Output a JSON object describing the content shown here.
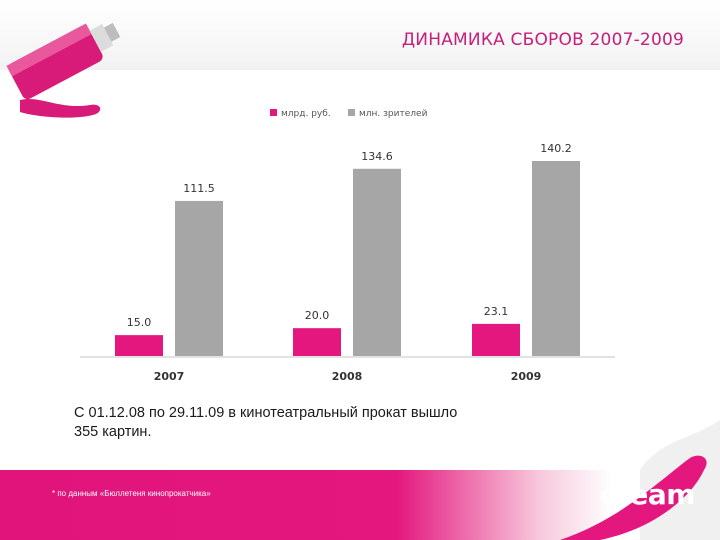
{
  "title": "ДИНАМИКА СБОРОВ 2007-2009",
  "caption": {
    "line1": "С 01.12.08 по 29.11.09 в кинотеатральный прокат вышло",
    "line2": "355 картин."
  },
  "footnote": "* по данным «Бюллетеня кинопрокатчика»",
  "logo": "cream",
  "colors": {
    "accent": "#e3177d",
    "gray": "#a6a6a6",
    "title": "#c4207c"
  },
  "chart_data": {
    "type": "bar",
    "categories": [
      "2007",
      "2008",
      "2009"
    ],
    "series": [
      {
        "name": "млрд. руб.",
        "color": "#e3177d",
        "values": [
          15.0,
          20.0,
          23.1
        ],
        "labels": [
          "15.0",
          "20.0",
          "23.1"
        ]
      },
      {
        "name": "млн. зрителей",
        "color": "#a6a6a6",
        "values": [
          111.5,
          134.6,
          140.2
        ],
        "labels": [
          "111.5",
          "134.6",
          "140.2"
        ]
      }
    ],
    "ylim": [
      0,
      140.2
    ],
    "legend": "top-center",
    "grid": false
  }
}
